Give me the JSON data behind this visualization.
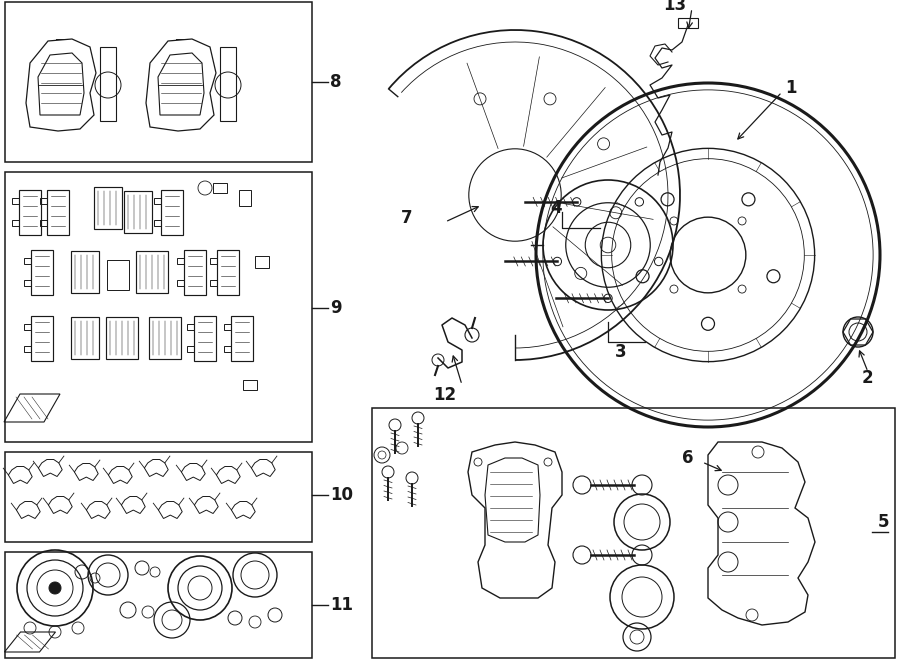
{
  "bg_color": "#ffffff",
  "lc": "#1a1a1a",
  "fig_w": 9.0,
  "fig_h": 6.62,
  "dpi": 100,
  "lw": 1.0,
  "tlw": 0.6,
  "thw": 1.8,
  "label_fs": 12,
  "boxes": {
    "b8": [
      0.05,
      0.02,
      3.12,
      1.62
    ],
    "b9": [
      0.05,
      1.72,
      3.12,
      4.42
    ],
    "b10": [
      0.05,
      4.52,
      3.12,
      5.42
    ],
    "b11": [
      0.05,
      5.52,
      3.12,
      6.55
    ],
    "b56": [
      3.72,
      4.08,
      8.95,
      6.58
    ]
  }
}
